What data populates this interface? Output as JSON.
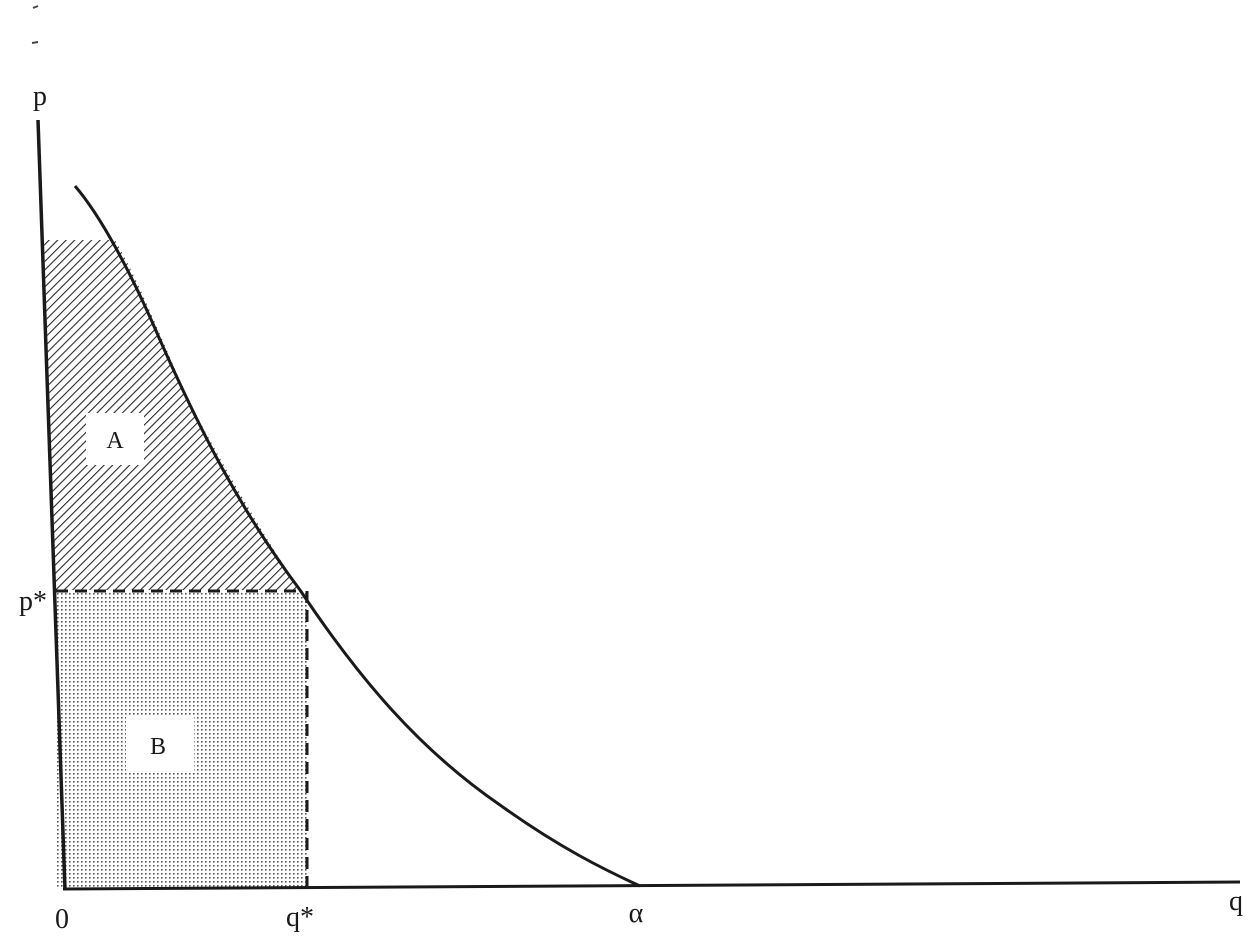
{
  "figure": {
    "y_axis_label": "p",
    "x_axis_label": "q",
    "origin_label": "0",
    "p_star_label": "p*",
    "q_star_label": "q*",
    "alpha_label": "α",
    "region_a_label": "A",
    "region_b_label": "B"
  },
  "colors": {
    "ink": "#1a1a1a",
    "background": "#ffffff"
  }
}
